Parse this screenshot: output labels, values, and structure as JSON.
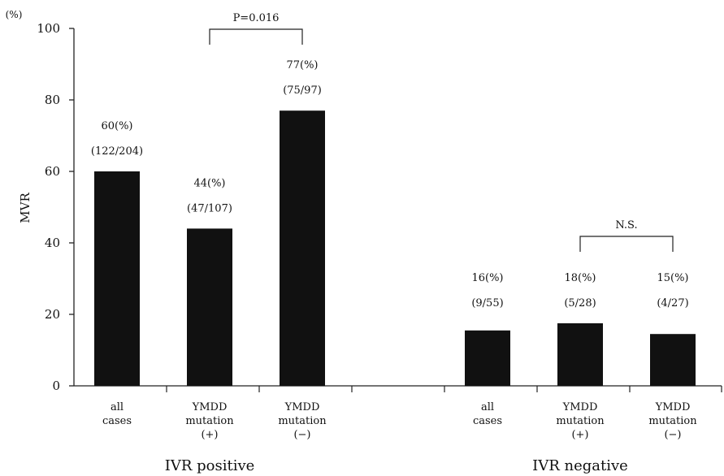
{
  "chart_data": {
    "type": "bar",
    "ylabel": "MVR",
    "y_unit": "(%)",
    "ylim": [
      0,
      100
    ],
    "yticks": [
      0,
      20,
      40,
      60,
      80,
      100
    ],
    "grid": false,
    "groups": [
      {
        "label": "IVR positive",
        "bars": [
          {
            "category": [
              "all",
              "cases"
            ],
            "value": 60,
            "pct_label": "60(%)",
            "frac_label": "(122/204)"
          },
          {
            "category": [
              "YMDD",
              "mutation",
              "(+)"
            ],
            "value": 44,
            "pct_label": "44(%)",
            "frac_label": "(47/107)"
          },
          {
            "category": [
              "YMDD",
              "mutation",
              "(−)"
            ],
            "value": 77,
            "pct_label": "77(%)",
            "frac_label": "(75/97)"
          }
        ],
        "comparison": {
          "from": 1,
          "to": 2,
          "label": "P=0.016"
        }
      },
      {
        "label": "IVR negative",
        "bars": [
          {
            "category": [
              "all",
              "cases"
            ],
            "value": 15.5,
            "pct_label": "16(%)",
            "frac_label": "(9/55)"
          },
          {
            "category": [
              "YMDD",
              "mutation",
              "(+)"
            ],
            "value": 17.5,
            "pct_label": "18(%)",
            "frac_label": "(5/28)"
          },
          {
            "category": [
              "YMDD",
              "mutation",
              "(−)"
            ],
            "value": 14.5,
            "pct_label": "15(%)",
            "frac_label": "(4/27)"
          }
        ],
        "comparison": {
          "from": 1,
          "to": 2,
          "label": "N.S."
        }
      }
    ],
    "colors": {
      "bar": "#111111",
      "axis": "#222222"
    }
  }
}
